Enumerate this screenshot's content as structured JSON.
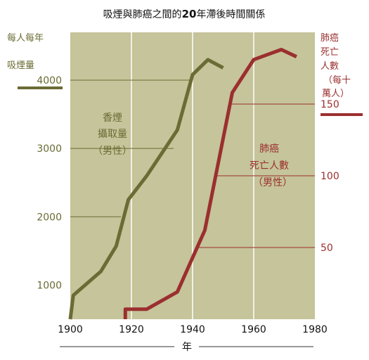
{
  "chart_data": {
    "type": "line",
    "title_parts": [
      "吸煙與肺癌之間的",
      "20",
      "年滯後時間關係"
    ],
    "xlabel": "年",
    "xlim": [
      1900,
      1980
    ],
    "x_ticks": [
      "1900",
      "1920",
      "1940",
      "1960",
      "1980"
    ],
    "left_axis": {
      "label_lines": [
        "每人每年",
        "吸煙量"
      ],
      "ylim": [
        500,
        4700
      ],
      "ticks": [
        "1000",
        "2000",
        "3000",
        "4000"
      ],
      "tick_values": [
        1000,
        2000,
        3000,
        4000
      ],
      "color": "#6b6b35"
    },
    "right_axis": {
      "label_lines": [
        "肺癌",
        "死亡",
        "人數",
        "（每十",
        "萬人）"
      ],
      "ylim": [
        0,
        200
      ],
      "ticks": [
        "50",
        "100",
        "150"
      ],
      "tick_values": [
        50,
        100,
        150
      ],
      "color": "#9b2f2f"
    },
    "plot_background": "#c5c49a",
    "series": [
      {
        "name_lines": [
          "香煙",
          "攝取量",
          "（男性）"
        ],
        "axis": "left",
        "color": "#6b6b35",
        "x": [
          1900,
          1901,
          1910,
          1915,
          1919,
          1925,
          1935,
          1940,
          1945,
          1950
        ],
        "y": [
          500,
          850,
          1200,
          1570,
          2250,
          2600,
          3270,
          4080,
          4300,
          4180
        ]
      },
      {
        "name_lines": [
          "肺癌",
          "死亡人數",
          "（男性）"
        ],
        "axis": "right",
        "color": "#9b2f2f",
        "x": [
          1918,
          1918,
          1925,
          1935,
          1944,
          1953,
          1960,
          1969,
          1974
        ],
        "y": [
          0,
          7,
          7,
          19,
          62,
          158,
          181,
          188,
          183
        ]
      }
    ]
  }
}
